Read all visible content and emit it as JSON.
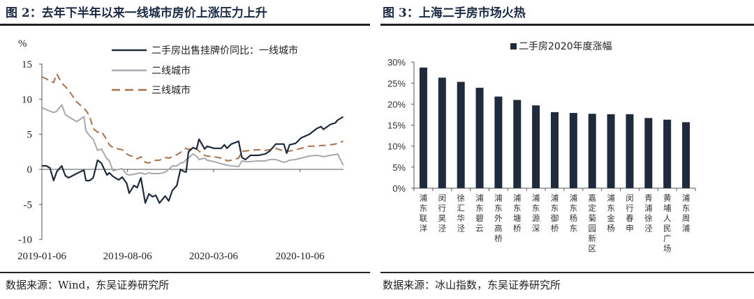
{
  "left_panel": {
    "title": "图 2：去年下半年以来一线城市房价上涨压力上升",
    "source": "数据来源：Wind，东吴证券研究所"
  },
  "right_panel": {
    "title": "图 3：上海二手房市场火热",
    "source": "数据来源：冰山指数，东吴证券研究所"
  },
  "chart_data": [
    {
      "type": "line",
      "ylabel": "%",
      "ylim": [
        -10,
        15
      ],
      "yticks": [
        "15",
        "10",
        "5",
        "0",
        "-5",
        "-10"
      ],
      "xticks": [
        "2019-01-06",
        "2019-08-06",
        "2020-03-06",
        "2020-10-06"
      ],
      "legend_position": "top-right",
      "x": [
        "2019-01-06",
        "2019-01-17",
        "2019-01-26",
        "2019-02-04",
        "2019-02-12",
        "2019-02-24",
        "2019-03-05",
        "2019-03-13",
        "2019-04-02",
        "2019-04-20",
        "2019-04-25",
        "2019-05-04",
        "2019-05-13",
        "2019-05-24",
        "2019-06-02",
        "2019-06-16",
        "2019-06-22",
        "2019-07-01",
        "2019-07-15",
        "2019-07-24",
        "2019-08-04",
        "2019-08-10",
        "2019-08-22",
        "2019-08-30",
        "2019-09-08",
        "2019-09-19",
        "2019-09-28",
        "2019-10-07",
        "2019-10-15",
        "2019-10-24",
        "2019-11-07",
        "2019-11-16",
        "2019-11-25",
        "2019-12-06",
        "2019-12-15",
        "2019-12-23",
        "2019-12-29",
        "2020-01-04",
        "2020-01-15",
        "2020-01-24",
        "2020-01-30",
        "2020-02-13",
        "2020-02-19",
        "2020-03-07",
        "2020-03-25",
        "2020-04-02",
        "2020-04-08",
        "2020-04-19",
        "2020-05-07",
        "2020-05-15",
        "2020-05-24",
        "2020-06-05",
        "2020-06-25",
        "2020-07-12",
        "2020-07-23",
        "2020-08-07",
        "2020-08-27",
        "2020-09-03",
        "2020-09-10",
        "2020-09-25",
        "2020-10-09",
        "2020-10-29",
        "2020-11-16",
        "2020-11-27",
        "2020-12-03",
        "2020-12-20",
        "2021-01-01",
        "2021-01-07",
        "2021-01-21"
      ],
      "series": [
        {
          "name": "二手房出售挂牌价同比：一线城市",
          "color": "#1f2a3c",
          "style": "solid",
          "values": [
            0.5,
            0.5,
            0.2,
            -1.6,
            -0.3,
            0.5,
            -0.9,
            -1.2,
            -0.6,
            -0.1,
            -1.6,
            -1.6,
            -1.2,
            1.3,
            0.9,
            -0.8,
            -0.5,
            -1.0,
            -1.5,
            -1.1,
            -2.0,
            -3.4,
            -2.3,
            -2.6,
            -1.2,
            -4.8,
            -3.5,
            -3.9,
            -3.7,
            -4.8,
            -3.8,
            -4.5,
            -3.0,
            -2.3,
            0,
            -0.3,
            -0.4,
            2.5,
            3.1,
            2.9,
            4.3,
            2.9,
            3.3,
            3.0,
            3.0,
            3.5,
            3.0,
            3.6,
            4.0,
            1.7,
            1.4,
            2.0,
            2.0,
            2.2,
            2.6,
            3.6,
            3.6,
            2.3,
            3.5,
            3.7,
            4.5,
            5.0,
            5.8,
            6.1,
            5.7,
            6.4,
            6.6,
            7.0,
            7.5
          ]
        },
        {
          "name": "二线城市",
          "color": "#a7a9b0",
          "style": "solid",
          "values": [
            8.8,
            8.5,
            8.3,
            8.1,
            8.3,
            9.2,
            7.8,
            7.5,
            6.8,
            7.5,
            5.5,
            4.8,
            4.3,
            2.7,
            2.9,
            1.5,
            1.2,
            -0.2,
            0,
            0.1,
            -0.7,
            -0.8,
            -0.7,
            -0.6,
            -0.5,
            -0.7,
            -0.5,
            -0.6,
            -0.6,
            -0.6,
            -0.4,
            0,
            0.5,
            0.5,
            0.9,
            1.0,
            1.4,
            1.6,
            2.2,
            1.9,
            1.4,
            1.6,
            1.3,
            1.1,
            0.8,
            0.7,
            0.6,
            0.5,
            0.4,
            1.2,
            1.1,
            1.1,
            1.2,
            1.2,
            1.4,
            1.4,
            1.0,
            1.1,
            1.3,
            1.4,
            1.6,
            1.9,
            2.0,
            1.9,
            1.8,
            2.0,
            2.1,
            2.2,
            0.6
          ]
        },
        {
          "name": "三线城市",
          "color": "#a9714a",
          "style": "dashed",
          "values": [
            13.2,
            12.9,
            12.5,
            12.4,
            13.6,
            12.3,
            11.8,
            11.3,
            9.6,
            8.7,
            8.4,
            7.6,
            5.8,
            5.3,
            5.4,
            4.2,
            3.5,
            3.1,
            2.9,
            2.8,
            2.2,
            2.0,
            1.8,
            1.5,
            1.8,
            1.0,
            0.9,
            1.2,
            1.3,
            1.3,
            1.7,
            1.6,
            1.8,
            2.1,
            2.4,
            2.8,
            3.0,
            2.8,
            3.1,
            2.9,
            2.6,
            2.0,
            1.9,
            1.8,
            1.6,
            1.5,
            1.2,
            1.3,
            1.6,
            2.6,
            2.6,
            2.7,
            2.8,
            2.7,
            2.8,
            3.0,
            2.6,
            2.5,
            2.6,
            2.8,
            3.0,
            3.3,
            3.3,
            3.4,
            3.4,
            3.5,
            3.6,
            3.7,
            4.0
          ]
        }
      ]
    },
    {
      "type": "bar",
      "legend_position": "top-center",
      "series": [
        {
          "name": "二手房2020年度涨幅",
          "color": "#1f2a3c",
          "values": [
            28.7,
            26.3,
            25.3,
            23.9,
            21.8,
            21.0,
            19.7,
            18.1,
            17.9,
            17.7,
            17.6,
            17.6,
            16.7,
            16.3,
            15.7
          ]
        }
      ],
      "categories": [
        "浦东联洋",
        "闵行昊泾",
        "徐汇华泾",
        "浦东碧云",
        "浦东外高桥",
        "浦东塘桥",
        "浦东源深",
        "浦东御桥",
        "浦东杨东",
        "嘉定菊园新区",
        "浦东金杨",
        "闵行春申",
        "青浦徐泾",
        "黄埔人民广场",
        "浦东周浦"
      ],
      "ylim": [
        0,
        30
      ],
      "yticks": [
        "30%",
        "25%",
        "20%",
        "15%",
        "10%",
        "5%",
        "0%"
      ]
    }
  ]
}
